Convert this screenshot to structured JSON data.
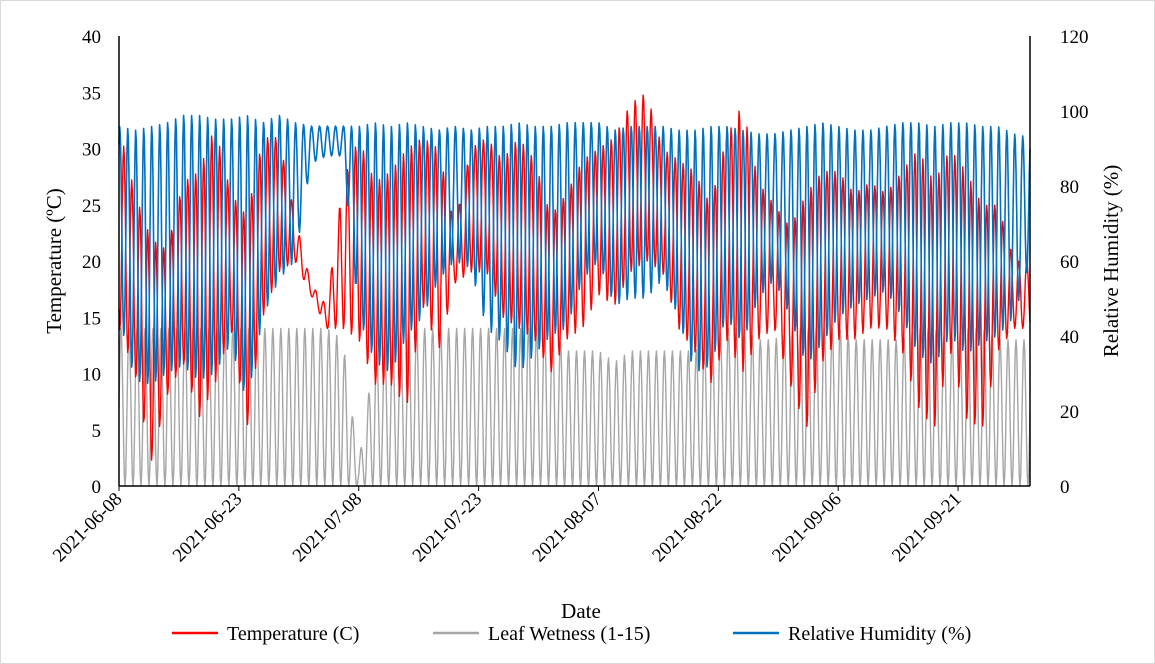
{
  "chart_data": {
    "type": "line",
    "xlabel": "Date",
    "ylabel": "Temperature (ºC)",
    "y2label": "Relative Humidity (%)",
    "x_range": [
      "2021-06-08",
      "2021-09-30"
    ],
    "x_ticks": [
      "2021-06-08",
      "2021-06-23",
      "2021-07-08",
      "2021-07-23",
      "2021-08-07",
      "2021-08-22",
      "2021-09-06",
      "2021-09-21"
    ],
    "ylim": [
      0,
      40
    ],
    "y_ticks": [
      0,
      5,
      10,
      15,
      20,
      25,
      30,
      35,
      40
    ],
    "y2lim": [
      0,
      120
    ],
    "y2_ticks": [
      0,
      20,
      40,
      60,
      80,
      100,
      120
    ],
    "grid": false,
    "legend_position": "bottom",
    "series": [
      {
        "name": "Temperature (C)",
        "axis": "left",
        "color": "#ff0000",
        "x": [
          "2021-06-08",
          "2021-06-10",
          "2021-06-12",
          "2021-06-14",
          "2021-06-16",
          "2021-06-18",
          "2021-06-20",
          "2021-06-22",
          "2021-06-24",
          "2021-06-26",
          "2021-06-28",
          "2021-06-30",
          "2021-07-02",
          "2021-07-04",
          "2021-07-06",
          "2021-07-08",
          "2021-07-10",
          "2021-07-12",
          "2021-07-14",
          "2021-07-16",
          "2021-07-18",
          "2021-07-20",
          "2021-07-22",
          "2021-07-24",
          "2021-07-26",
          "2021-07-28",
          "2021-07-30",
          "2021-08-01",
          "2021-08-03",
          "2021-08-05",
          "2021-08-07",
          "2021-08-09",
          "2021-08-11",
          "2021-08-13",
          "2021-08-15",
          "2021-08-17",
          "2021-08-19",
          "2021-08-21",
          "2021-08-23",
          "2021-08-25",
          "2021-08-27",
          "2021-08-29",
          "2021-08-31",
          "2021-09-02",
          "2021-09-04",
          "2021-09-06",
          "2021-09-08",
          "2021-09-10",
          "2021-09-12",
          "2021-09-14",
          "2021-09-16",
          "2021-09-18",
          "2021-09-20",
          "2021-09-22",
          "2021-09-24",
          "2021-09-26",
          "2021-09-28",
          "2021-09-30"
        ],
        "low": [
          14,
          10,
          2,
          8,
          11,
          6,
          9,
          14,
          5,
          15,
          19,
          20,
          17,
          14,
          14,
          13,
          9,
          9,
          7,
          16,
          12,
          18,
          19,
          19,
          15,
          14,
          13,
          10,
          13,
          14,
          17,
          16,
          19,
          20,
          19,
          14,
          12,
          9,
          13,
          10,
          13,
          14,
          9,
          5,
          11,
          13,
          13,
          14,
          14,
          12,
          7,
          5,
          12,
          6,
          5,
          12,
          14,
          14
        ],
        "high": [
          32,
          26,
          22,
          21,
          27,
          28,
          32,
          26,
          24,
          31,
          31,
          24,
          18,
          16,
          27,
          31,
          27,
          28,
          30,
          31,
          30,
          23,
          30,
          31,
          29,
          31,
          29,
          24,
          26,
          29,
          30,
          31,
          34,
          35,
          30,
          29,
          28,
          25,
          31,
          34,
          27,
          25,
          23,
          26,
          28,
          28,
          26,
          27,
          26,
          28,
          30,
          27,
          30,
          28,
          25,
          25,
          20,
          20
        ]
      },
      {
        "name": "Leaf Wetness (1-15)",
        "axis": "left",
        "color": "#a6a6a6",
        "x": [
          "2021-06-08",
          "2021-06-10",
          "2021-06-12",
          "2021-06-14",
          "2021-06-16",
          "2021-06-18",
          "2021-06-20",
          "2021-06-22",
          "2021-06-24",
          "2021-06-26",
          "2021-06-28",
          "2021-06-30",
          "2021-07-02",
          "2021-07-04",
          "2021-07-06",
          "2021-07-08",
          "2021-07-10",
          "2021-07-12",
          "2021-07-14",
          "2021-07-16",
          "2021-07-18",
          "2021-07-20",
          "2021-07-22",
          "2021-07-24",
          "2021-07-26",
          "2021-07-28",
          "2021-07-30",
          "2021-08-01",
          "2021-08-03",
          "2021-08-05",
          "2021-08-07",
          "2021-08-09",
          "2021-08-11",
          "2021-08-13",
          "2021-08-15",
          "2021-08-17",
          "2021-08-19",
          "2021-08-21",
          "2021-08-23",
          "2021-08-25",
          "2021-08-27",
          "2021-08-29",
          "2021-08-31",
          "2021-09-02",
          "2021-09-04",
          "2021-09-06",
          "2021-09-08",
          "2021-09-10",
          "2021-09-12",
          "2021-09-14",
          "2021-09-16",
          "2021-09-18",
          "2021-09-20",
          "2021-09-22",
          "2021-09-24",
          "2021-09-26",
          "2021-09-28",
          "2021-09-30"
        ],
        "high": [
          14,
          14,
          14,
          14,
          14,
          14,
          14,
          14,
          14,
          14,
          14,
          14,
          14,
          14,
          13,
          2,
          12,
          13,
          14,
          14,
          14,
          14,
          14,
          14,
          14,
          14,
          14,
          14,
          12,
          12,
          12,
          11,
          12,
          12,
          12,
          12,
          12,
          13,
          14,
          14,
          13,
          13,
          14,
          14,
          14,
          14,
          13,
          13,
          13,
          13,
          14,
          14,
          13,
          14,
          14,
          13,
          13,
          13
        ],
        "low": 0
      },
      {
        "name": "Relative Humidity (%)",
        "axis": "right",
        "color": "#0070c0",
        "x": [
          "2021-06-08",
          "2021-06-10",
          "2021-06-12",
          "2021-06-14",
          "2021-06-16",
          "2021-06-18",
          "2021-06-20",
          "2021-06-22",
          "2021-06-24",
          "2021-06-26",
          "2021-06-28",
          "2021-06-30",
          "2021-07-02",
          "2021-07-04",
          "2021-07-06",
          "2021-07-08",
          "2021-07-10",
          "2021-07-12",
          "2021-07-14",
          "2021-07-16",
          "2021-07-18",
          "2021-07-20",
          "2021-07-22",
          "2021-07-24",
          "2021-07-26",
          "2021-07-28",
          "2021-07-30",
          "2021-08-01",
          "2021-08-03",
          "2021-08-05",
          "2021-08-07",
          "2021-08-09",
          "2021-08-11",
          "2021-08-13",
          "2021-08-15",
          "2021-08-17",
          "2021-08-19",
          "2021-08-21",
          "2021-08-23",
          "2021-08-25",
          "2021-08-27",
          "2021-08-29",
          "2021-08-31",
          "2021-09-02",
          "2021-09-04",
          "2021-09-06",
          "2021-09-08",
          "2021-09-10",
          "2021-09-12",
          "2021-09-14",
          "2021-09-16",
          "2021-09-18",
          "2021-09-20",
          "2021-09-22",
          "2021-09-24",
          "2021-09-26",
          "2021-09-28",
          "2021-09-30"
        ],
        "low": [
          45,
          28,
          27,
          30,
          32,
          28,
          30,
          38,
          22,
          45,
          55,
          60,
          86,
          88,
          88,
          45,
          33,
          30,
          40,
          45,
          55,
          60,
          58,
          42,
          38,
          30,
          35,
          40,
          42,
          55,
          60,
          48,
          50,
          50,
          55,
          45,
          30,
          32,
          45,
          38,
          50,
          55,
          45,
          32,
          38,
          45,
          48,
          50,
          52,
          45,
          35,
          32,
          40,
          35,
          38,
          40,
          45,
          60
        ],
        "high": [
          96,
          95,
          96,
          97,
          99,
          99,
          98,
          98,
          99,
          97,
          99,
          97,
          96,
          96,
          96,
          96,
          97,
          96,
          97,
          96,
          95,
          96,
          95,
          96,
          96,
          97,
          96,
          96,
          97,
          97,
          97,
          95,
          96,
          96,
          96,
          95,
          95,
          96,
          96,
          95,
          94,
          94,
          95,
          96,
          97,
          96,
          95,
          95,
          96,
          97,
          97,
          96,
          97,
          97,
          96,
          96,
          94,
          93
        ]
      }
    ]
  }
}
